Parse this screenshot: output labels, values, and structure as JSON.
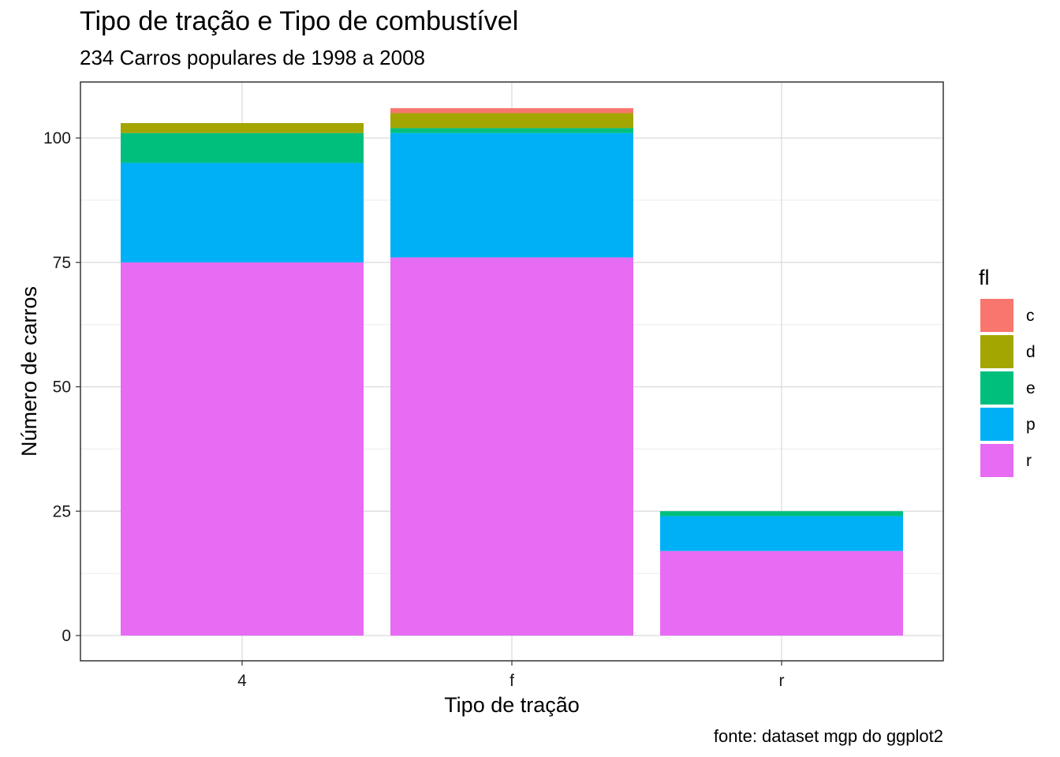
{
  "chart_data": {
    "type": "bar",
    "stacked": true,
    "title": "Tipo de tração e Tipo de combustível",
    "subtitle": "234 Carros populares de 1998 a 2008",
    "caption": "fonte: dataset mgp do ggplot2",
    "xlabel": "Tipo de tração",
    "ylabel": "Número de carros",
    "categories": [
      "4",
      "f",
      "r"
    ],
    "ylim": [
      0,
      110
    ],
    "yticks": [
      0,
      25,
      50,
      75,
      100
    ],
    "grid": true,
    "legend": {
      "title": "fl",
      "position": "right"
    },
    "series": [
      {
        "name": "c",
        "color": "#F8766D",
        "values": [
          0,
          1,
          0
        ]
      },
      {
        "name": "d",
        "color": "#A3A500",
        "values": [
          2,
          3,
          0
        ]
      },
      {
        "name": "e",
        "color": "#00BF7D",
        "values": [
          6,
          1,
          1
        ]
      },
      {
        "name": "p",
        "color": "#00B0F6",
        "values": [
          20,
          25,
          7
        ]
      },
      {
        "name": "r",
        "color": "#E76BF3",
        "values": [
          75,
          76,
          17
        ]
      }
    ]
  }
}
